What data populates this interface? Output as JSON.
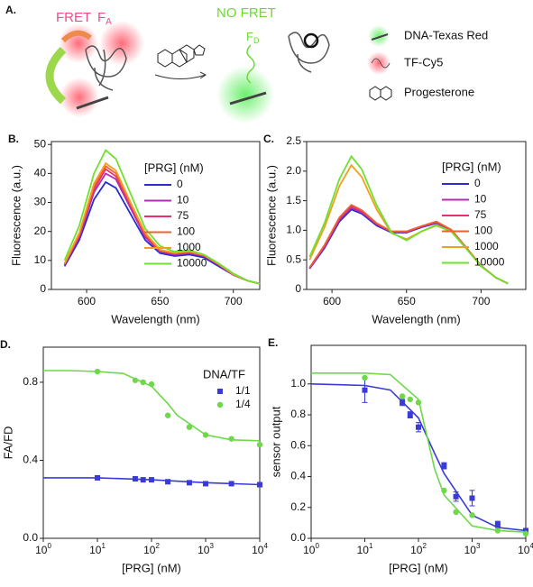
{
  "diagram": {
    "panel": "A.",
    "fret": "FRET",
    "fa": "F",
    "fa_sub": "A",
    "no_fret": "NO FRET",
    "fd": "F",
    "fd_sub": "D",
    "legend": [
      "DNA-Texas Red",
      "TF-Cy5",
      "Progesterone"
    ]
  },
  "chart_data": [
    {
      "type": "line",
      "panel": "B.",
      "xlabel": "Wavelength (nm)",
      "ylabel": "Fluorescence (a.u.)",
      "legend_title": "[PRG] (nM)",
      "x": [
        585,
        595,
        605,
        613,
        620,
        630,
        640,
        650,
        660,
        670,
        680,
        690,
        700,
        710,
        718
      ],
      "xlim": [
        576,
        718
      ],
      "xticks": [
        600,
        650,
        700
      ],
      "ylim": [
        0,
        51
      ],
      "yticks": [
        0,
        10,
        20,
        30,
        40,
        50
      ],
      "series": [
        {
          "name": "0",
          "color": "#2b2bd0",
          "values": [
            8,
            17,
            31,
            37,
            35,
            26,
            17,
            12.5,
            11.5,
            12,
            11,
            8,
            5,
            3,
            2
          ]
        },
        {
          "name": "10",
          "color": "#b22db2",
          "values": [
            8.5,
            18,
            33.5,
            40,
            38,
            28,
            18,
            13,
            12,
            12.5,
            11.5,
            8.5,
            5,
            3,
            2
          ]
        },
        {
          "name": "75",
          "color": "#e8306a",
          "values": [
            8.7,
            18.5,
            34.5,
            41.5,
            39,
            29,
            18.5,
            13.2,
            12.3,
            12.8,
            11.6,
            8.6,
            5.1,
            3,
            2
          ]
        },
        {
          "name": "100",
          "color": "#f06030",
          "values": [
            8.8,
            19,
            35.5,
            42.5,
            40,
            29.5,
            19,
            13.5,
            12.5,
            13,
            11.8,
            8.7,
            5.2,
            3,
            2
          ]
        },
        {
          "name": "1000",
          "color": "#f0a020",
          "values": [
            9,
            19.5,
            36.5,
            43.5,
            41,
            30,
            19.5,
            13.7,
            12.6,
            13.1,
            11.9,
            8.8,
            5.2,
            3,
            2
          ]
        },
        {
          "name": "10000",
          "color": "#70e030",
          "values": [
            10,
            22,
            40,
            48,
            45,
            33,
            21,
            15,
            13,
            13.5,
            12,
            9,
            5.5,
            3,
            2
          ]
        }
      ]
    },
    {
      "type": "line",
      "panel": "C.",
      "xlabel": "Wavelength (nm)",
      "ylabel": "Fluorescence (a.u.)",
      "legend_title": "[PRG] (nM)",
      "x": [
        585,
        595,
        605,
        613,
        620,
        630,
        640,
        650,
        660,
        670,
        680,
        690,
        700,
        710,
        718
      ],
      "xlim": [
        583,
        730
      ],
      "xticks": [
        600,
        650,
        700
      ],
      "ylim": [
        0,
        2.5
      ],
      "yticks": [
        0,
        {
          "value": 0.5,
          "label": "0.5"
        },
        {
          "value": 1,
          "label": "1.0"
        },
        {
          "value": 1.5,
          "label": "1.5"
        },
        {
          "value": 2,
          "label": "2.0"
        },
        {
          "value": 2.5,
          "label": "2.5"
        }
      ],
      "series": [
        {
          "name": "0",
          "color": "#2b2bd0",
          "values": [
            0.35,
            0.7,
            1.15,
            1.35,
            1.28,
            1.08,
            0.96,
            0.96,
            1.05,
            1.12,
            1.0,
            0.7,
            0.4,
            0.2,
            0.1
          ]
        },
        {
          "name": "10",
          "color": "#b22db2",
          "values": [
            0.36,
            0.72,
            1.18,
            1.38,
            1.3,
            1.1,
            0.97,
            0.97,
            1.06,
            1.13,
            1.0,
            0.7,
            0.4,
            0.2,
            0.1
          ]
        },
        {
          "name": "75",
          "color": "#e8306a",
          "values": [
            0.37,
            0.74,
            1.2,
            1.41,
            1.32,
            1.11,
            0.98,
            0.98,
            1.07,
            1.14,
            1.01,
            0.71,
            0.4,
            0.2,
            0.1
          ]
        },
        {
          "name": "100",
          "color": "#f06030",
          "values": [
            0.37,
            0.75,
            1.22,
            1.43,
            1.34,
            1.12,
            0.98,
            0.98,
            1.07,
            1.15,
            1.01,
            0.71,
            0.4,
            0.2,
            0.1
          ]
        },
        {
          "name": "1000",
          "color": "#f0a020",
          "values": [
            0.5,
            1.05,
            1.75,
            2.1,
            1.9,
            1.35,
            0.95,
            0.85,
            0.98,
            1.08,
            0.98,
            0.69,
            0.39,
            0.2,
            0.1
          ]
        },
        {
          "name": "10000",
          "color": "#70e030",
          "values": [
            0.55,
            1.12,
            1.87,
            2.25,
            2.03,
            1.42,
            0.96,
            0.83,
            0.98,
            1.09,
            0.98,
            0.69,
            0.39,
            0.2,
            0.1
          ]
        }
      ]
    },
    {
      "type": "scatter",
      "panel": "D.",
      "xlabel": "[PRG] (nM)",
      "ylabel": "FA/FD",
      "legend_title": "DNA/TF",
      "xscale": "log",
      "xlim": [
        1,
        10000
      ],
      "xticks": [
        {
          "value": 1,
          "label": "10^0"
        },
        {
          "value": 10,
          "label": "10^1"
        },
        {
          "value": 100,
          "label": "10^2"
        },
        {
          "value": 1000,
          "label": "10^3"
        },
        {
          "value": 10000,
          "label": "10^4"
        }
      ],
      "ylim": [
        0,
        0.98
      ],
      "yticks": [
        {
          "value": 0,
          "label": "0.0"
        },
        {
          "value": 0.4,
          "label": "0.4"
        },
        {
          "value": 0.8,
          "label": "0.8"
        }
      ],
      "series": [
        {
          "name": "1/1",
          "color": "#3a3ad8",
          "marker": "square",
          "x": [
            10,
            50,
            70,
            100,
            200,
            500,
            1000,
            3000,
            10000
          ],
          "values": [
            0.31,
            0.305,
            0.3,
            0.3,
            0.29,
            0.285,
            0.28,
            0.28,
            0.275
          ],
          "fit_x": [
            1,
            10,
            100,
            1000,
            10000
          ],
          "fit_values": [
            0.31,
            0.31,
            0.3,
            0.285,
            0.275
          ]
        },
        {
          "name": "1/4",
          "color": "#6ed84a",
          "marker": "circle",
          "x": [
            10,
            50,
            70,
            100,
            200,
            500,
            1000,
            3000,
            10000
          ],
          "values": [
            0.855,
            0.81,
            0.8,
            0.79,
            0.63,
            0.57,
            0.53,
            0.51,
            0.48
          ],
          "fit_x": [
            1,
            3,
            10,
            30,
            100,
            200,
            300,
            1000,
            3000,
            10000
          ],
          "fit_values": [
            0.86,
            0.86,
            0.855,
            0.845,
            0.78,
            0.69,
            0.63,
            0.53,
            0.505,
            0.5
          ]
        }
      ]
    },
    {
      "type": "scatter",
      "panel": "E.",
      "xlabel": "[PRG] (nM)",
      "ylabel": "sensor output",
      "xscale": "log",
      "xlim": [
        1,
        10000
      ],
      "xticks": [
        {
          "value": 1,
          "label": "10^0"
        },
        {
          "value": 10,
          "label": "10^1"
        },
        {
          "value": 100,
          "label": "10^2"
        },
        {
          "value": 1000,
          "label": "10^3"
        },
        {
          "value": 10000,
          "label": "10^4"
        }
      ],
      "ylim": [
        0,
        1.25
      ],
      "yticks": [
        {
          "value": 0,
          "label": "0.0"
        },
        {
          "value": 0.2,
          "label": "0.2"
        },
        {
          "value": 0.4,
          "label": "0.4"
        },
        {
          "value": 0.6,
          "label": "0.6"
        },
        {
          "value": 0.8,
          "label": "0.8"
        },
        {
          "value": 1,
          "label": "1.0"
        }
      ],
      "series": [
        {
          "color": "#3a3ad8",
          "marker": "square",
          "x": [
            10,
            50,
            70,
            100,
            300,
            500,
            1000,
            3000,
            10000
          ],
          "values": [
            0.96,
            0.88,
            0.8,
            0.72,
            0.47,
            0.27,
            0.26,
            0.09,
            0.05
          ],
          "errors": [
            0.08,
            0.02,
            0.02,
            0.03,
            0.02,
            0.03,
            0.05,
            0.02,
            null
          ],
          "fit_x": [
            1,
            10,
            30,
            100,
            200,
            300,
            1000,
            3000,
            10000
          ],
          "fit_values": [
            1,
            0.99,
            0.96,
            0.78,
            0.55,
            0.42,
            0.15,
            0.07,
            0.05
          ]
        },
        {
          "color": "#6ed84a",
          "marker": "circle",
          "x": [
            10,
            50,
            70,
            100,
            300,
            500,
            1000,
            3000,
            10000
          ],
          "values": [
            1.04,
            0.92,
            0.9,
            0.88,
            0.31,
            0.17,
            0.15,
            0.05,
            0.03
          ],
          "fit_x": [
            1,
            10,
            30,
            100,
            200,
            300,
            1000,
            3000,
            10000
          ],
          "fit_values": [
            1.07,
            1.07,
            1.06,
            0.9,
            0.45,
            0.28,
            0.08,
            0.05,
            0.04
          ]
        }
      ]
    }
  ]
}
